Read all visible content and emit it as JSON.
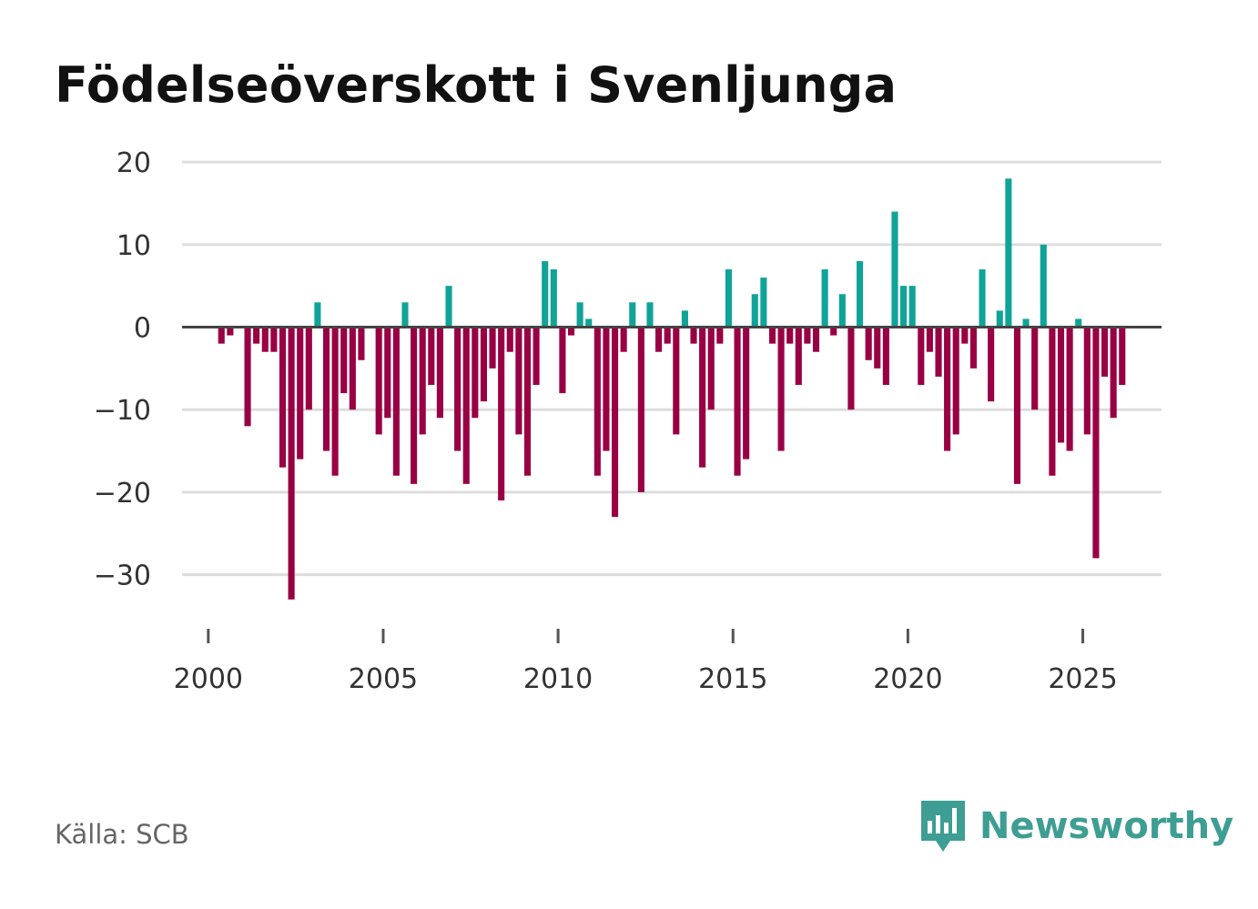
{
  "title": "Födelseöverskott i Svenljunga",
  "source": "Källa: SCB",
  "brand": {
    "name": "Newsworthy",
    "icon": "newsworthy-logo-icon",
    "color": "#3e9e93"
  },
  "chart_data": {
    "type": "bar",
    "title": "Födelseöverskott i Svenljunga",
    "xlabel": "",
    "ylabel": "",
    "ylim": [
      -36,
      22
    ],
    "xlim": [
      1999.25,
      2027.25
    ],
    "grid": true,
    "legend": "none",
    "y_ticks": [
      20,
      10,
      0,
      -10,
      -20,
      -30
    ],
    "y_tick_labels": [
      "20",
      "10",
      "0",
      "−10",
      "−20",
      "−30"
    ],
    "x_ticks": [
      2000,
      2005,
      2010,
      2015,
      2020,
      2025
    ],
    "x_tick_labels": [
      "2000",
      "2005",
      "2010",
      "2015",
      "2020",
      "2025"
    ],
    "colors": {
      "positive": "#10a398",
      "negative": "#990044",
      "grid": "#dddddd",
      "zero_line": "#444444",
      "axis": "#555555"
    },
    "x_start": 2000.125,
    "x_step": 0.25,
    "values": [
      0,
      -2,
      -1,
      0,
      -12,
      -2,
      -3,
      -3,
      -17,
      -33,
      -16,
      -10,
      3,
      -15,
      -18,
      -8,
      -10,
      -4,
      0,
      -13,
      -11,
      -18,
      3,
      -19,
      -13,
      -7,
      -11,
      5,
      -15,
      -19,
      -11,
      -9,
      -5,
      -21,
      -3,
      -13,
      -18,
      -7,
      8,
      7,
      -8,
      -1,
      3,
      1,
      -18,
      -15,
      -23,
      -3,
      3,
      -20,
      3,
      -3,
      -2,
      -13,
      2,
      -2,
      -17,
      -10,
      -2,
      7,
      -18,
      -16,
      4,
      6,
      -2,
      -15,
      -2,
      -7,
      -2,
      -3,
      7,
      -1,
      4,
      -10,
      8,
      -4,
      -5,
      -7,
      14,
      5,
      5,
      -7,
      -3,
      -6,
      -15,
      -13,
      -2,
      -5,
      7,
      -9,
      2,
      18,
      -19,
      1,
      -10,
      10,
      -18,
      -14,
      -15,
      1,
      -13,
      -28,
      -6,
      -11,
      -7
    ]
  }
}
